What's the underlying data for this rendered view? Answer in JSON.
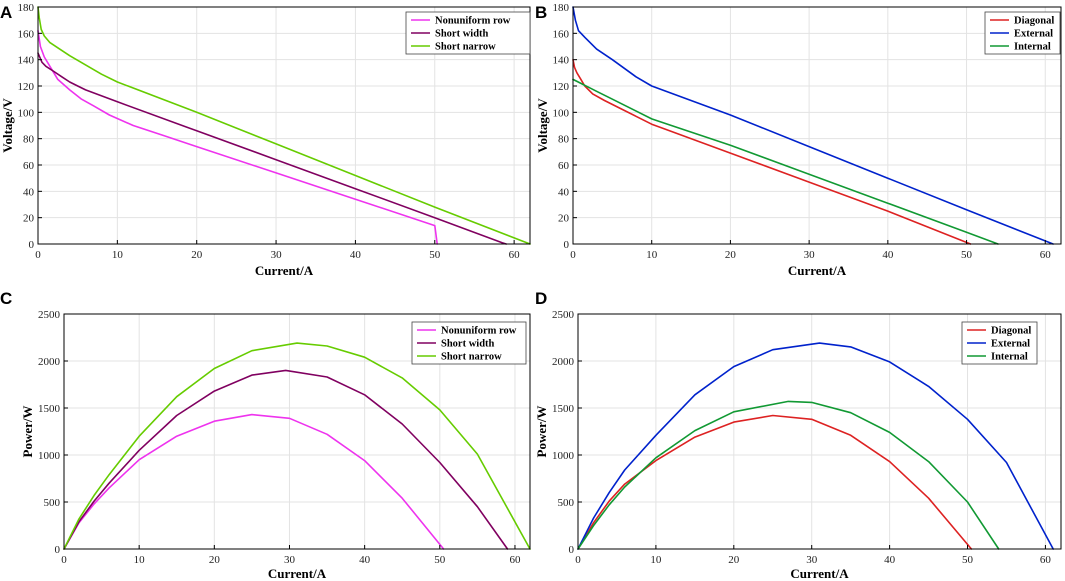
{
  "chart_data": [
    {
      "panel": "A",
      "type": "line",
      "xlabel": "Current/A",
      "ylabel": "Voltage/V",
      "xlim": [
        0,
        62
      ],
      "ylim": [
        0,
        180
      ],
      "xticks": [
        0,
        10,
        20,
        30,
        40,
        50,
        60
      ],
      "yticks": [
        0,
        20,
        40,
        60,
        80,
        100,
        120,
        140,
        160,
        180
      ],
      "grid": true,
      "legend_position": "top-right",
      "series": [
        {
          "name": "Nonuniform row",
          "color": "#ee33ee",
          "x": [
            0,
            0.3,
            0.8,
            1.5,
            2.5,
            4,
            5.5,
            7,
            9,
            12,
            16,
            20,
            30,
            40,
            50,
            50.3
          ],
          "y": [
            162,
            150,
            142,
            135,
            125,
            117,
            110,
            105,
            98,
            90,
            82,
            74,
            54,
            34,
            14,
            0
          ]
        },
        {
          "name": "Short width",
          "color": "#800060",
          "x": [
            0,
            0.5,
            1,
            2,
            3,
            4,
            5,
            6,
            10,
            20,
            30,
            40,
            50,
            58.5,
            59
          ],
          "y": [
            145,
            138,
            135,
            131,
            127,
            123,
            120,
            117,
            108,
            86,
            64,
            42,
            20,
            1,
            0
          ]
        },
        {
          "name": "Short narrow",
          "color": "#66cc00",
          "x": [
            0,
            0.15,
            0.4,
            0.8,
            1.5,
            2.5,
            4,
            6,
            8,
            10,
            20,
            30,
            40,
            50,
            62
          ],
          "y": [
            180,
            172,
            163,
            158,
            153,
            149,
            143,
            136,
            129,
            123,
            100,
            76,
            52,
            28,
            0
          ]
        }
      ]
    },
    {
      "panel": "B",
      "type": "line",
      "xlabel": "Current/A",
      "ylabel": "Voltage/V",
      "xlim": [
        0,
        62
      ],
      "ylim": [
        0,
        180
      ],
      "xticks": [
        0,
        10,
        20,
        30,
        40,
        50,
        60
      ],
      "yticks": [
        0,
        20,
        40,
        60,
        80,
        100,
        120,
        140,
        160,
        180
      ],
      "grid": true,
      "legend_position": "top-right",
      "series": [
        {
          "name": "Diagonal",
          "color": "#dd2222",
          "x": [
            0,
            0.2,
            0.5,
            1,
            1.5,
            2.5,
            4,
            6,
            8,
            10,
            20,
            30,
            40,
            50.5
          ],
          "y": [
            140,
            134,
            130,
            125,
            120,
            114,
            109,
            103,
            97,
            91,
            69,
            47,
            25,
            0
          ]
        },
        {
          "name": "External",
          "color": "#0022cc",
          "x": [
            0,
            0.3,
            0.7,
            1.5,
            3,
            5,
            8,
            10,
            20,
            30,
            40,
            50,
            61
          ],
          "y": [
            180,
            170,
            162,
            157,
            148,
            140,
            127,
            120,
            98,
            74,
            50,
            26,
            0
          ]
        },
        {
          "name": "Internal",
          "color": "#119933",
          "x": [
            0,
            1,
            2,
            3,
            5,
            10,
            20,
            30,
            40,
            50,
            54
          ],
          "y": [
            125,
            122,
            119,
            116,
            110,
            95,
            75,
            53,
            31,
            9,
            0
          ]
        }
      ]
    },
    {
      "panel": "C",
      "type": "line",
      "xlabel": "Current/A",
      "ylabel": "Power/W",
      "xlim": [
        0,
        62
      ],
      "ylim": [
        0,
        2500
      ],
      "xticks": [
        0,
        10,
        20,
        30,
        40,
        50,
        60
      ],
      "yticks": [
        0,
        500,
        1000,
        1500,
        2000,
        2500
      ],
      "grid": true,
      "legend_position": "top-right",
      "series": [
        {
          "name": "Nonuniform row",
          "color": "#ee33ee",
          "x": [
            0,
            2,
            4,
            6,
            10,
            15,
            20,
            25,
            30,
            35,
            40,
            45,
            50.5
          ],
          "y": [
            0,
            280,
            480,
            650,
            950,
            1200,
            1360,
            1430,
            1390,
            1220,
            940,
            540,
            0
          ]
        },
        {
          "name": "Short width",
          "color": "#800060",
          "x": [
            0,
            2,
            4,
            6,
            10,
            15,
            20,
            25,
            29.5,
            35,
            40,
            45,
            50,
            55,
            59
          ],
          "y": [
            0,
            290,
            510,
            700,
            1050,
            1420,
            1680,
            1850,
            1900,
            1830,
            1640,
            1330,
            920,
            450,
            0
          ]
        },
        {
          "name": "Short narrow",
          "color": "#66cc00",
          "x": [
            0,
            2,
            4,
            6,
            10,
            15,
            20,
            25,
            31,
            35,
            40,
            45,
            50,
            55,
            62
          ],
          "y": [
            0,
            320,
            570,
            790,
            1200,
            1620,
            1920,
            2110,
            2190,
            2160,
            2040,
            1820,
            1480,
            1010,
            0
          ]
        }
      ]
    },
    {
      "panel": "D",
      "type": "line",
      "xlabel": "Current/A",
      "ylabel": "Power/W",
      "xlim": [
        0,
        62
      ],
      "ylim": [
        0,
        2500
      ],
      "xticks": [
        0,
        10,
        20,
        30,
        40,
        50,
        60
      ],
      "yticks": [
        0,
        500,
        1000,
        1500,
        2000,
        2500
      ],
      "grid": true,
      "legend_position": "top-right",
      "series": [
        {
          "name": "Diagonal",
          "color": "#dd2222",
          "x": [
            0,
            2,
            4,
            6,
            10,
            15,
            20,
            25,
            30,
            35,
            40,
            45,
            50.5
          ],
          "y": [
            0,
            280,
            510,
            690,
            940,
            1190,
            1350,
            1420,
            1380,
            1210,
            930,
            540,
            0
          ]
        },
        {
          "name": "External",
          "color": "#0022cc",
          "x": [
            0,
            2,
            4,
            6,
            10,
            15,
            20,
            25,
            31,
            35,
            40,
            45,
            50,
            55,
            61
          ],
          "y": [
            0,
            330,
            600,
            840,
            1210,
            1640,
            1940,
            2120,
            2190,
            2150,
            1990,
            1730,
            1380,
            920,
            0
          ]
        },
        {
          "name": "Internal",
          "color": "#119933",
          "x": [
            0,
            2,
            4,
            6,
            10,
            15,
            20,
            27,
            30,
            35,
            40,
            45,
            50,
            54
          ],
          "y": [
            0,
            250,
            470,
            660,
            970,
            1260,
            1460,
            1570,
            1560,
            1450,
            1240,
            930,
            500,
            0
          ]
        }
      ]
    }
  ]
}
